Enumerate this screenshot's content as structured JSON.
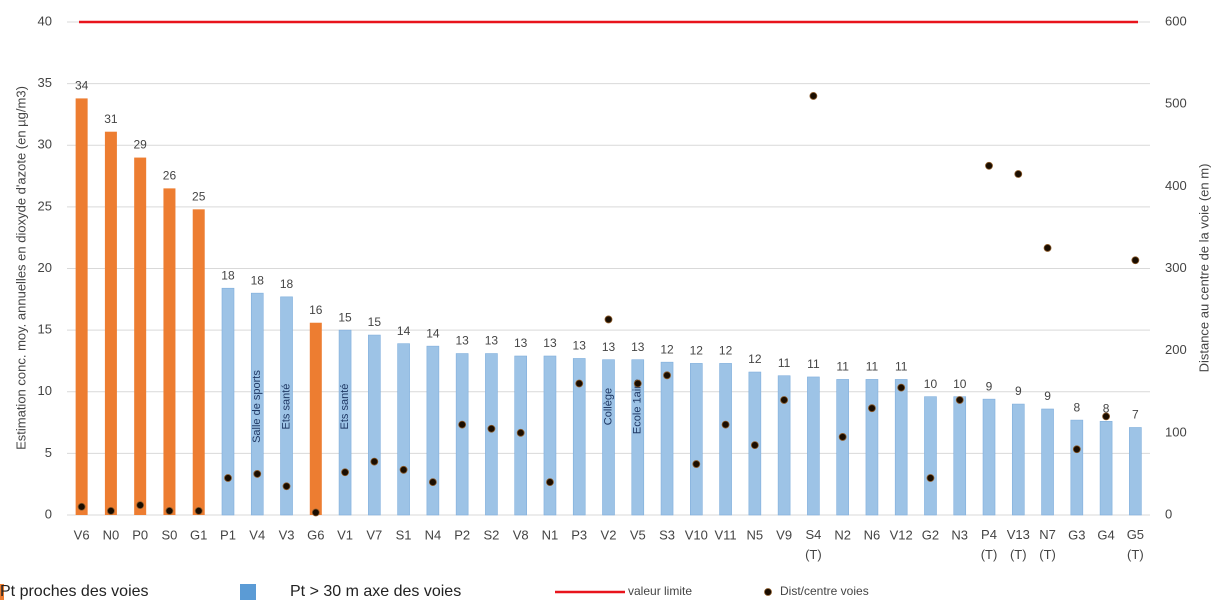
{
  "chart_data": {
    "type": "bar",
    "y_label": "Estimation conc. moy. annuelles en dioxyde d'azote (en µg/m3)",
    "y2_label": "Distance au centre de la voie (en m)",
    "categories": [
      "V6",
      "N0",
      "P0",
      "S0",
      "G1",
      "P1",
      "V4",
      "V3",
      "G6",
      "V1",
      "V7",
      "S1",
      "N4",
      "P2",
      "S2",
      "V8",
      "N1",
      "P3",
      "V2",
      "V5",
      "S3",
      "V10",
      "V11",
      "N5",
      "V9",
      "S4 (T)",
      "N2",
      "N6",
      "V12",
      "G2",
      "N3",
      "P4 (T)",
      "V13 (T)",
      "N7 (T)",
      "G3",
      "G4",
      "G5 (T)"
    ],
    "series": [
      {
        "name": "Pt proches des voies",
        "color": "#ed7d31",
        "values": [
          33.8,
          31.1,
          29.0,
          26.5,
          24.8,
          null,
          null,
          null,
          15.6,
          null,
          null,
          null,
          null,
          null,
          null,
          null,
          null,
          null,
          null,
          null,
          null,
          null,
          null,
          null,
          null,
          null,
          null,
          null,
          null,
          null,
          null,
          null,
          null,
          null,
          null,
          null,
          null
        ],
        "value_labels": [
          "34",
          "31",
          "29",
          "26",
          "25",
          null,
          null,
          null,
          "16",
          null,
          null,
          null,
          null,
          null,
          null,
          null,
          null,
          null,
          null,
          null,
          null,
          null,
          null,
          null,
          null,
          null,
          null,
          null,
          null,
          null,
          null,
          null,
          null,
          null,
          null,
          null,
          null
        ]
      },
      {
        "name": "Pt > 30 m axe des voies",
        "color": "#9dc3e6",
        "values": [
          null,
          null,
          null,
          null,
          null,
          18.4,
          18.0,
          17.7,
          null,
          15.0,
          14.6,
          13.9,
          13.7,
          13.1,
          13.1,
          12.9,
          12.9,
          12.7,
          12.6,
          12.6,
          12.4,
          12.3,
          12.3,
          11.6,
          11.3,
          11.2,
          11.0,
          11.0,
          11.0,
          9.6,
          9.6,
          9.4,
          9.0,
          8.6,
          7.7,
          7.6,
          7.1
        ],
        "value_labels": [
          null,
          null,
          null,
          null,
          null,
          "18",
          "18",
          "18",
          null,
          "15",
          "15",
          "14",
          "14",
          "13",
          "13",
          "13",
          "13",
          "13",
          "13",
          "13",
          "12",
          "12",
          "12",
          "12",
          "11",
          "11",
          "11",
          "11",
          "11",
          "10",
          "10",
          "9",
          "9",
          "9",
          "8",
          "8",
          "7"
        ]
      },
      {
        "name": "Dist/centre voies",
        "color": "#1a0d00",
        "axis": "y2",
        "type": "scatter",
        "values": [
          10,
          5,
          12,
          5,
          5,
          45,
          50,
          35,
          3,
          52,
          65,
          55,
          40,
          110,
          105,
          100,
          40,
          160,
          238,
          160,
          170,
          62,
          110,
          85,
          140,
          510,
          95,
          130,
          155,
          45,
          140,
          425,
          415,
          325,
          80,
          120,
          310
        ]
      }
    ],
    "limit": {
      "name": "valeur limite",
      "value": 40,
      "color": "#e8141c"
    },
    "annotations": [
      {
        "text": "Salle de sports",
        "category": 6
      },
      {
        "text": "Ets santé",
        "category": 7
      },
      {
        "text": "Ets santé",
        "category": 9
      },
      {
        "text": "Collège",
        "category": 18
      },
      {
        "text": "Ecole 1aire",
        "category": 19
      }
    ],
    "ylim": [
      0,
      40
    ],
    "yticks": [
      0,
      5,
      10,
      15,
      20,
      25,
      30,
      35,
      40
    ],
    "y2lim": [
      0,
      600
    ],
    "y2ticks": [
      0,
      100,
      200,
      300,
      400,
      500,
      600
    ],
    "grid": true,
    "legend": "bottom"
  }
}
